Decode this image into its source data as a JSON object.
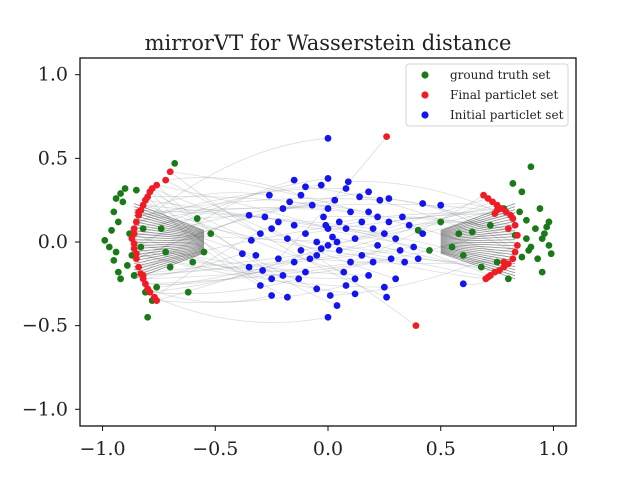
{
  "chart_data": {
    "type": "scatter",
    "title": "mirrorVT for Wasserstein distance",
    "xlabel": "",
    "ylabel": "",
    "xlim": [
      -1.1,
      1.1
    ],
    "ylim": [
      -1.1,
      1.1
    ],
    "xticks": [
      -1.0,
      -0.5,
      0.0,
      0.5,
      1.0
    ],
    "yticks": [
      -1.0,
      -0.5,
      0.0,
      0.5,
      1.0
    ],
    "xtick_labels": [
      "−1.0",
      "−0.5",
      "0.0",
      "0.5",
      "1.0"
    ],
    "ytick_labels": [
      "−1.0",
      "−0.5",
      "0.0",
      "0.5",
      "1.0"
    ],
    "grid": false,
    "legend_position": "top-right",
    "series": [
      {
        "name": "ground truth set",
        "color": "#1a7a1a",
        "points": [
          [
            -0.99,
            0.01
          ],
          [
            -0.97,
            -0.03
          ],
          [
            -0.96,
            0.07
          ],
          [
            -0.95,
            0.18
          ],
          [
            -0.94,
            0.26
          ],
          [
            -0.93,
            0.12
          ],
          [
            -0.94,
            -0.06
          ],
          [
            -0.95,
            -0.11
          ],
          [
            -0.93,
            -0.18
          ],
          [
            -0.92,
            -0.22
          ],
          [
            -0.91,
            0.24
          ],
          [
            -0.92,
            0.29
          ],
          [
            -0.9,
            0.32
          ],
          [
            -0.89,
            -0.14
          ],
          [
            -0.88,
            0.05
          ],
          [
            -0.87,
            -0.08
          ],
          [
            -0.86,
            -0.2
          ],
          [
            -0.85,
            0.31
          ],
          [
            -0.84,
            0.16
          ],
          [
            -0.83,
            -0.03
          ],
          [
            -0.82,
            0.08
          ],
          [
            -0.81,
            -0.3
          ],
          [
            -0.8,
            -0.45
          ],
          [
            -0.78,
            -0.35
          ],
          [
            -0.76,
            -0.27
          ],
          [
            -0.74,
            0.08
          ],
          [
            -0.72,
            -0.06
          ],
          [
            -0.7,
            -0.15
          ],
          [
            -0.68,
            0.47
          ],
          [
            -0.62,
            -0.3
          ],
          [
            -0.6,
            -0.12
          ],
          [
            -0.58,
            0.14
          ],
          [
            -0.55,
            -0.06
          ],
          [
            -0.52,
            0.05
          ],
          [
            0.4,
            0.07
          ],
          [
            0.45,
            -0.05
          ],
          [
            0.5,
            0.12
          ],
          [
            0.55,
            -0.03
          ],
          [
            0.58,
            0.05
          ],
          [
            0.6,
            -0.08
          ],
          [
            0.64,
            0.06
          ],
          [
            0.68,
            -0.15
          ],
          [
            0.72,
            0.1
          ],
          [
            0.75,
            -0.12
          ],
          [
            0.78,
            0.2
          ],
          [
            0.8,
            -0.22
          ],
          [
            0.82,
            0.35
          ],
          [
            0.85,
            0.18
          ],
          [
            0.86,
            0.3
          ],
          [
            0.88,
            0.02
          ],
          [
            0.89,
            -0.05
          ],
          [
            0.9,
            0.45
          ],
          [
            0.92,
            0.08
          ],
          [
            0.93,
            -0.1
          ],
          [
            0.94,
            0.2
          ],
          [
            0.95,
            0.02
          ],
          [
            0.95,
            -0.18
          ],
          [
            0.96,
            0.05
          ],
          [
            0.97,
            0.09
          ],
          [
            0.98,
            0.12
          ],
          [
            0.98,
            -0.02
          ],
          [
            0.99,
            -0.07
          ],
          [
            0.88,
            0.13
          ],
          [
            0.86,
            -0.09
          ],
          [
            0.9,
            -0.03
          ],
          [
            0.83,
            0.04
          ]
        ]
      },
      {
        "name": "Final particlet set",
        "color": "#ee1c24",
        "points": [
          [
            -0.86,
            0.08
          ],
          [
            -0.87,
            0.02
          ],
          [
            -0.86,
            -0.04
          ],
          [
            -0.85,
            0.12
          ],
          [
            -0.85,
            -0.1
          ],
          [
            -0.84,
            0.16
          ],
          [
            -0.84,
            -0.15
          ],
          [
            -0.83,
            0.19
          ],
          [
            -0.83,
            -0.19
          ],
          [
            -0.82,
            0.22
          ],
          [
            -0.82,
            -0.22
          ],
          [
            -0.81,
            0.25
          ],
          [
            -0.81,
            -0.25
          ],
          [
            -0.8,
            0.27
          ],
          [
            -0.8,
            -0.28
          ],
          [
            -0.79,
            0.3
          ],
          [
            -0.79,
            -0.3
          ],
          [
            -0.78,
            0.32
          ],
          [
            -0.77,
            -0.33
          ],
          [
            -0.76,
            0.34
          ],
          [
            -0.76,
            -0.35
          ],
          [
            -0.86,
            0.05
          ],
          [
            -0.86,
            -0.01
          ],
          [
            -0.85,
            -0.07
          ],
          [
            -0.72,
            0.37
          ],
          [
            -0.7,
            0.42
          ],
          [
            -0.84,
            0.18
          ],
          [
            -0.82,
            -0.2
          ],
          [
            0.83,
            0.1
          ],
          [
            0.84,
            0.04
          ],
          [
            0.84,
            -0.02
          ],
          [
            0.83,
            -0.06
          ],
          [
            0.82,
            0.14
          ],
          [
            0.82,
            -0.1
          ],
          [
            0.81,
            0.16
          ],
          [
            0.8,
            -0.13
          ],
          [
            0.79,
            0.18
          ],
          [
            0.78,
            -0.15
          ],
          [
            0.77,
            0.2
          ],
          [
            0.76,
            -0.17
          ],
          [
            0.75,
            0.22
          ],
          [
            0.74,
            -0.18
          ],
          [
            0.73,
            0.24
          ],
          [
            0.72,
            -0.2
          ],
          [
            0.71,
            0.26
          ],
          [
            0.7,
            -0.22
          ],
          [
            0.69,
            0.28
          ],
          [
            0.74,
            0.17
          ],
          [
            0.8,
            0.08
          ],
          [
            0.78,
            -0.12
          ],
          [
            0.75,
            0.19
          ],
          [
            0.71,
            -0.21
          ],
          [
            0.26,
            0.63
          ],
          [
            0.39,
            -0.5
          ]
        ]
      },
      {
        "name": "Initial particlet set",
        "color": "#1414ee",
        "points": [
          [
            0.0,
            0.62
          ],
          [
            -0.03,
            0.34
          ],
          [
            0.0,
            0.38
          ],
          [
            0.08,
            0.32
          ],
          [
            0.18,
            0.3
          ],
          [
            0.23,
            0.25
          ],
          [
            -0.15,
            0.37
          ],
          [
            -0.26,
            0.28
          ],
          [
            -0.35,
            0.16
          ],
          [
            -0.34,
            0.01
          ],
          [
            -0.38,
            -0.07
          ],
          [
            -0.35,
            -0.15
          ],
          [
            -0.29,
            -0.17
          ],
          [
            -0.3,
            -0.26
          ],
          [
            -0.25,
            -0.32
          ],
          [
            -0.18,
            -0.33
          ],
          [
            -0.13,
            -0.22
          ],
          [
            -0.05,
            -0.28
          ],
          [
            0.0,
            -0.45
          ],
          [
            0.04,
            -0.38
          ],
          [
            0.08,
            -0.26
          ],
          [
            0.12,
            -0.31
          ],
          [
            0.18,
            -0.2
          ],
          [
            0.25,
            -0.27
          ],
          [
            0.3,
            -0.22
          ],
          [
            0.26,
            -0.33
          ],
          [
            0.34,
            -0.12
          ],
          [
            0.38,
            -0.03
          ],
          [
            0.36,
            0.1
          ],
          [
            0.33,
            0.15
          ],
          [
            0.27,
            0.26
          ],
          [
            0.42,
            0.23
          ],
          [
            0.5,
            0.22
          ],
          [
            0.4,
            -0.1
          ],
          [
            0.42,
            0.05
          ],
          [
            0.6,
            -0.25
          ],
          [
            -0.2,
            0.2
          ],
          [
            -0.15,
            0.1
          ],
          [
            -0.1,
            0.05
          ],
          [
            -0.05,
            0.0
          ],
          [
            0.0,
            -0.02
          ],
          [
            0.02,
            0.03
          ],
          [
            0.05,
            -0.05
          ],
          [
            0.08,
            0.08
          ],
          [
            0.12,
            0.02
          ],
          [
            0.15,
            -0.08
          ],
          [
            0.1,
            -0.12
          ],
          [
            0.05,
            0.12
          ],
          [
            -0.02,
            0.15
          ],
          [
            -0.08,
            -0.1
          ],
          [
            -0.12,
            -0.05
          ],
          [
            -0.18,
            0.02
          ],
          [
            -0.22,
            -0.1
          ],
          [
            -0.25,
            0.08
          ],
          [
            -0.28,
            0.15
          ],
          [
            -0.2,
            -0.2
          ],
          [
            -0.1,
            -0.18
          ],
          [
            0.0,
            0.2
          ],
          [
            0.03,
            0.25
          ],
          [
            0.1,
            0.18
          ],
          [
            0.15,
            0.12
          ],
          [
            0.2,
            0.08
          ],
          [
            0.22,
            -0.02
          ],
          [
            0.25,
            0.05
          ],
          [
            0.28,
            -0.1
          ],
          [
            0.3,
            0.02
          ],
          [
            0.2,
            -0.12
          ],
          [
            0.18,
            0.18
          ],
          [
            -0.05,
            -0.08
          ],
          [
            0.07,
            -0.18
          ],
          [
            -0.15,
            -0.12
          ],
          [
            -0.3,
            0.05
          ],
          [
            -0.22,
            0.12
          ],
          [
            0.0,
            0.08
          ],
          [
            -0.03,
            -0.04
          ],
          [
            0.04,
            0.0
          ],
          [
            -0.07,
            0.22
          ],
          [
            0.12,
            -0.22
          ],
          [
            -0.12,
            0.28
          ],
          [
            0.22,
            0.15
          ],
          [
            -0.32,
            -0.08
          ],
          [
            0.32,
            -0.05
          ],
          [
            -0.25,
            -0.22
          ],
          [
            0.14,
            0.27
          ],
          [
            0.01,
            -0.32
          ],
          [
            -0.1,
            0.33
          ],
          [
            0.09,
            0.36
          ],
          [
            -0.17,
            0.24
          ],
          [
            0.27,
            0.12
          ],
          [
            -0.01,
            0.1
          ]
        ]
      }
    ]
  }
}
